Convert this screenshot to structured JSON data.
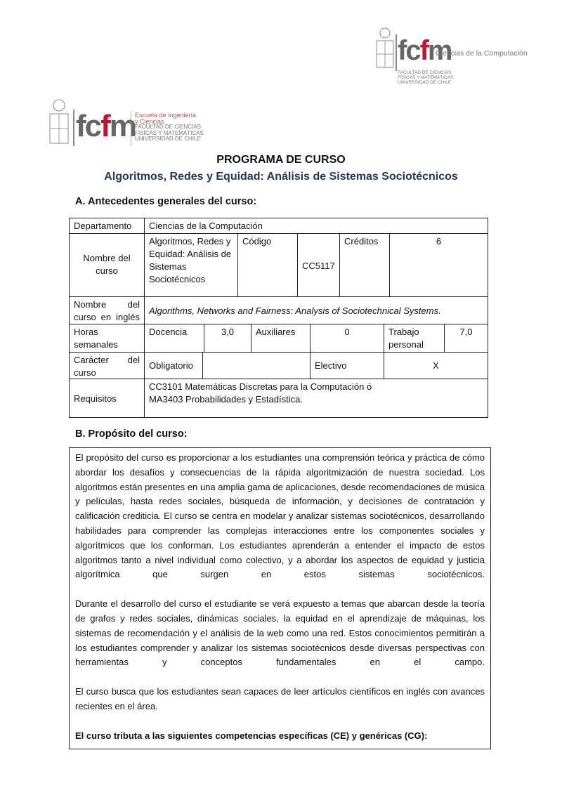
{
  "logos": {
    "top_right": {
      "mark": "fcfm",
      "dept": "Ciencias de la Computación",
      "lines": [
        "FACULTAD DE CIENCIAS",
        "FÍSICAS Y MATEMÁTICAS",
        "UNIVERSIDAD DE CHILE"
      ]
    },
    "left": {
      "mark": "fcfm",
      "lines": [
        "Escuela de Ingeniería",
        "y Ciencias",
        "FACULTAD DE CIENCIAS",
        "FÍSICAS Y MATEMÁTICAS",
        "UNIVERSIDAD DE CHILE"
      ]
    }
  },
  "title": "PROGRAMA DE CURSO",
  "subtitle": "Algoritmos, Redes y Equidad: Análisis de Sistemas Sociotécnicos",
  "section_a": "A.  Antecedentes generales del curso:",
  "table": {
    "departamento_label": "Departamento",
    "departamento": "Ciencias de la Computación",
    "nombre_label": "Nombre del curso",
    "nombre": "Algoritmos, Redes y Equidad: Análisis de Sistemas Sociotécnicos",
    "codigo_label": "Código",
    "codigo": "CC5117",
    "creditos_label": "Créditos",
    "creditos": "6",
    "ingles_label": "Nombre del curso en inglés",
    "ingles": "Algorithms, Networks and Fairness: Analysis of Sociotechnical Systems.",
    "horas_label": "Horas semanales",
    "docencia_label": "Docencia",
    "docencia": "3,0",
    "auxiliares_label": "Auxiliares",
    "auxiliares": "0",
    "trabajo_label": "Trabajo personal",
    "trabajo": "7,0",
    "caracter_label": "Carácter del curso",
    "obligatorio_label": "Obligatorio",
    "obligatorio": "",
    "electivo_label": "Electivo",
    "electivo": "X",
    "requisitos_label": "Requisitos",
    "requisitos": "CC3101 Matemáticas Discretas para la Computación ó MA3403 Probabilidades y Estadística."
  },
  "section_b": "B.  Propósito del curso:",
  "purpose": [
    "El propósito del curso es  proporcionar a los estudiantes una comprensión teórica y práctica de cómo abordar los desafíos y consecuencias de la rápida algoritmización de nuestra sociedad. Los algoritmos están presentes en una amplia gama de aplicaciones, desde recomendaciones de música y películas, hasta redes sociales, búsqueda de información, y decisiones de contratación y calificación crediticia. El curso se centra en modelar y analizar sistemas sociotécnicos, desarrollando habilidades para comprender las complejas interacciones entre los componentes sociales y algorítmicos que los conforman. Los estudiantes aprenderán a entender el impacto de estos algoritmos tanto a nivel individual como colectivo, y a abordar los aspectos de equidad y justicia algorítmica que surgen en estos sistemas sociotécnicos.",
    "Durante el desarrollo del curso el estudiante se verá expuesto a temas que abarcan desde la teoría de grafos y redes sociales, dinámicas sociales, la equidad en el aprendizaje de máquinas, los sistemas de recomendación y el análisis de la web como una red. Estos conocimientos permitirán a los estudiantes comprender y analizar los sistemas sociotécnicos desde diversas perspectivas con herramientas y conceptos fundamentales en el campo.",
    "El curso busca que los estudiantes sean capaces de leer artículos científicos en inglés con avances recientes en el área."
  ],
  "competencias": "El curso tributa a las siguientes competencias específicas (CE) y genéricas (CG):",
  "colors": {
    "subtitle": "#1f3864",
    "logo_red": "#c8102e",
    "logo_gray": "#666666"
  }
}
